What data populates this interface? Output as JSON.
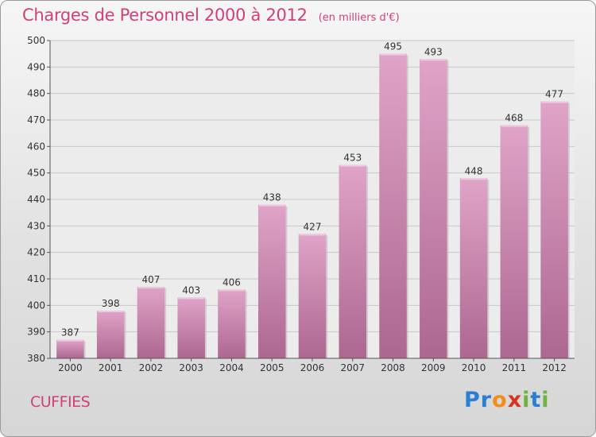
{
  "header": {
    "title": "Charges de Personnel 2000 à 2012",
    "subtitle": "(en milliers d'€)"
  },
  "footer": {
    "commune": "CUFFIES",
    "logo": {
      "letters": [
        "P",
        "r",
        "o",
        "x",
        "i",
        "t",
        "i"
      ],
      "colors": [
        "#2a7fd4",
        "#2a7fd4",
        "#f28c1b",
        "#d6341e",
        "#6db33f",
        "#2a7fd4",
        "#6db33f"
      ]
    }
  },
  "colors": {
    "accent": "#d0407a",
    "bar_top": "#e0a4c8",
    "bar_bottom": "#ad6790"
  },
  "chart_data": {
    "type": "bar",
    "categories": [
      "2000",
      "2001",
      "2002",
      "2003",
      "2004",
      "2005",
      "2006",
      "2007",
      "2008",
      "2009",
      "2010",
      "2011",
      "2012"
    ],
    "values": [
      387,
      398,
      407,
      403,
      406,
      438,
      427,
      453,
      495,
      493,
      448,
      468,
      477
    ],
    "ylim": [
      380,
      500
    ],
    "yticks": [
      380,
      390,
      400,
      410,
      420,
      430,
      440,
      450,
      460,
      470,
      480,
      490,
      500
    ],
    "grid": true
  }
}
